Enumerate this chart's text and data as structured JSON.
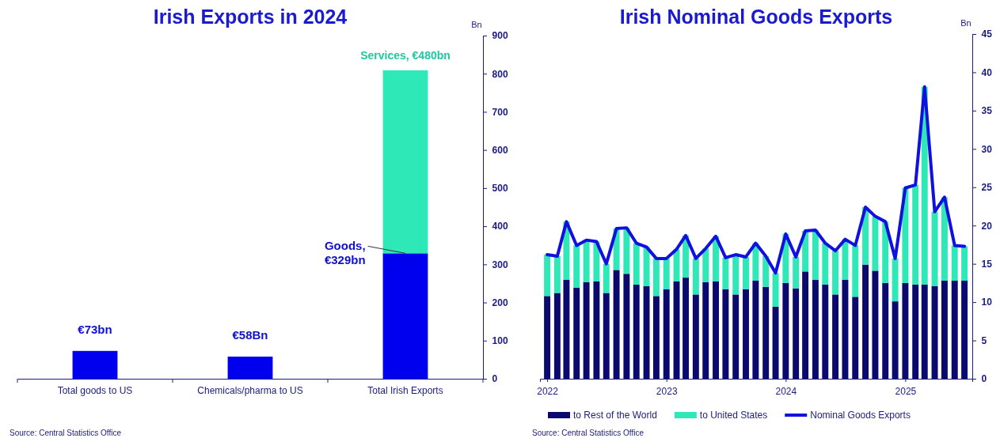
{
  "chart_data": [
    {
      "type": "bar",
      "title": "Irish Exports in 2024",
      "ylabel": "Bn",
      "stacked": true,
      "categories": [
        "Total goods to US",
        "Chemicals/pharma to US",
        "Total Irish Exports"
      ],
      "series": [
        {
          "color": "#0000ee",
          "values": [
            73,
            58,
            329
          ]
        },
        {
          "color": "#2ee8b8",
          "values": [
            null,
            null,
            480
          ]
        }
      ],
      "ylim": [
        0,
        900
      ],
      "yticks": [
        0,
        100,
        200,
        300,
        400,
        500,
        600,
        700,
        800,
        900
      ],
      "grid": false,
      "legend": false,
      "annotations": [
        {
          "text": "€73bn",
          "x": "Total goods to US",
          "y": 73
        },
        {
          "text": "€58Bn",
          "x": "Chemicals/pharma to US",
          "y": 58
        },
        {
          "text": "Goods, €329bn",
          "x": "Total Irish Exports",
          "y": 329
        },
        {
          "text": "Services, €480bn",
          "x": "Total Irish Exports",
          "y": 809
        },
        "Source: Central Statistics Office"
      ]
    },
    {
      "type": "bar",
      "title": "Irish Nominal Goods Exports",
      "ylabel": "Bn",
      "stacked": true,
      "legend": "bottom",
      "grid": false,
      "x": [
        "2022-01",
        "2022-02",
        "2022-03",
        "2022-04",
        "2022-05",
        "2022-06",
        "2022-07",
        "2022-08",
        "2022-09",
        "2022-10",
        "2022-11",
        "2022-12",
        "2023-01",
        "2023-02",
        "2023-03",
        "2023-04",
        "2023-05",
        "2023-06",
        "2023-07",
        "2023-08",
        "2023-09",
        "2023-10",
        "2023-11",
        "2023-12",
        "2024-01",
        "2024-02",
        "2024-03",
        "2024-04",
        "2024-05",
        "2024-06",
        "2024-07",
        "2024-08",
        "2024-09",
        "2024-10",
        "2024-11",
        "2024-12",
        "2025-01",
        "2025-02",
        "2025-03",
        "2025-04",
        "2025-05",
        "2025-06",
        "2025-07"
      ],
      "series": [
        {
          "name": "to Rest of the World",
          "color": "#0a0a6e",
          "values": [
            10.8,
            11.2,
            12.9,
            11.9,
            12.6,
            12.7,
            11.2,
            14.2,
            13.7,
            12.3,
            12.1,
            10.8,
            11.7,
            12.7,
            13.2,
            11.0,
            12.6,
            12.7,
            11.7,
            11.0,
            11.7,
            12.8,
            12.0,
            9.4,
            12.5,
            11.8,
            14.0,
            12.9,
            12.3,
            11.0,
            12.9,
            10.7,
            14.9,
            14.1,
            12.5,
            10.1,
            12.5,
            12.3,
            12.3,
            12.1,
            12.8,
            12.8,
            12.8
          ]
        },
        {
          "name": "to United States",
          "color": "#2ee8b8",
          "values": [
            5.4,
            4.8,
            7.6,
            5.5,
            5.5,
            5.2,
            3.8,
            5.4,
            6.0,
            5.4,
            5.1,
            4.9,
            4.0,
            4.2,
            5.5,
            4.7,
            4.4,
            5.9,
            4.1,
            5.2,
            4.2,
            4.9,
            4.0,
            4.4,
            6.4,
            4.1,
            5.3,
            6.5,
            5.4,
            5.7,
            5.3,
            6.7,
            7.5,
            7.1,
            8.0,
            5.6,
            12.4,
            13.0,
            25.8,
            9.7,
            10.9,
            4.6,
            4.5
          ]
        },
        {
          "name": "Nominal Goods Exports",
          "type": "line",
          "color": "#1010e0",
          "values": [
            16.2,
            16.0,
            20.5,
            17.4,
            18.1,
            17.9,
            15.0,
            19.6,
            19.7,
            17.7,
            17.2,
            15.7,
            15.7,
            16.9,
            18.7,
            15.7,
            17.0,
            18.6,
            15.8,
            16.2,
            15.9,
            17.7,
            16.0,
            13.8,
            18.9,
            15.9,
            19.3,
            19.4,
            17.7,
            16.7,
            18.2,
            17.4,
            22.4,
            21.2,
            20.5,
            15.7,
            24.9,
            25.3,
            38.1,
            21.8,
            23.7,
            17.4,
            17.3
          ]
        }
      ],
      "xlim": [
        "2021-12-10",
        "2025-07-25"
      ],
      "xticks": [
        "2022",
        "2023",
        "2024",
        "2025"
      ],
      "ylim": [
        0,
        45
      ],
      "yticks": [
        0,
        5,
        10,
        15,
        20,
        25,
        30,
        35,
        40,
        45
      ],
      "marker": "none",
      "line_style": "solid",
      "annotations": [
        "Source: Central Statistics Office"
      ]
    }
  ]
}
